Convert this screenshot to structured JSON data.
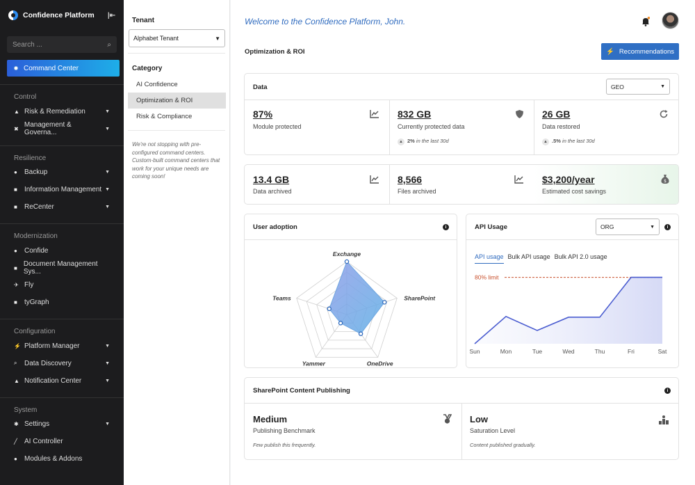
{
  "app": {
    "title": "Confidence Platform"
  },
  "search": {
    "placeholder": "Search ..."
  },
  "command_center": "Command Center",
  "sidebar": {
    "sections": [
      {
        "title": "Control",
        "items": [
          {
            "label": "Risk & Remediation",
            "icon": "warning-icon",
            "expand": true
          },
          {
            "label": "Management & Governa...",
            "icon": "tools-icon",
            "expand": true
          }
        ]
      },
      {
        "title": "Resilience",
        "items": [
          {
            "label": "Backup",
            "icon": "backup-icon",
            "expand": true
          },
          {
            "label": "Information Management",
            "icon": "info-management-icon",
            "expand": true
          },
          {
            "label": "ReCenter",
            "icon": "recenter-icon",
            "expand": true
          }
        ]
      },
      {
        "title": "Modernization",
        "items": [
          {
            "label": "Confide",
            "icon": "chat-icon",
            "expand": false
          },
          {
            "label": "Document Management Sys...",
            "icon": "document-icon",
            "expand": false
          },
          {
            "label": "Fly",
            "icon": "plane-icon",
            "expand": false
          },
          {
            "label": "tyGraph",
            "icon": "graph-icon",
            "expand": false
          }
        ]
      },
      {
        "title": "Configuration",
        "items": [
          {
            "label": "Platform Manager",
            "icon": "bolt-icon",
            "expand": true
          },
          {
            "label": "Data Discovery",
            "icon": "search-icon",
            "expand": true
          },
          {
            "label": "Notification Center",
            "icon": "bell-icon",
            "expand": true
          }
        ]
      },
      {
        "title": "System",
        "items": [
          {
            "label": "Settings",
            "icon": "gear-icon",
            "expand": true
          },
          {
            "label": "AI Controller",
            "icon": "wand-icon",
            "expand": false
          },
          {
            "label": "Modules & Addons",
            "icon": "modules-icon",
            "expand": false
          }
        ]
      }
    ]
  },
  "tenant": {
    "heading": "Tenant",
    "selected": "Alphabet Tenant"
  },
  "category": {
    "heading": "Category",
    "items": [
      "AI Confidence",
      "Optimization & ROI",
      "Risk & Compliance"
    ],
    "active": "Optimization & ROI",
    "note": "We're not stopping with pre-configured command centers. Custom-built command centers that work for your unique needs are coming soon!"
  },
  "header": {
    "welcome": "Welcome to the Confidence Platform, John.",
    "page_title": "Optimization & ROI",
    "recommendations": "Recommendations"
  },
  "data_card": {
    "title": "Data",
    "geo": "GEO",
    "metrics": [
      {
        "value": "87%",
        "label": "Module protected",
        "icon": "chart-line-icon"
      },
      {
        "value": "832 GB",
        "label": "Currently protected data",
        "trend_value": "2%",
        "trend_text": " in the last 30d",
        "icon": "shield-icon"
      },
      {
        "value": "26 GB",
        "label": "Data restored",
        "trend_value": ".5%",
        "trend_text": " in the last 30d",
        "icon": "refresh-icon"
      }
    ]
  },
  "archive_card": {
    "metrics": [
      {
        "value": "13.4 GB",
        "label": "Data archived",
        "icon": "chart-line-icon"
      },
      {
        "value": "8,566",
        "label": "Files archived",
        "icon": "chart-line-icon"
      },
      {
        "value": "$3,200/year",
        "label": "Estimated cost savings",
        "icon": "money-bag-icon"
      }
    ]
  },
  "user_adoption": {
    "title": "User adoption"
  },
  "api_usage": {
    "title": "API Usage",
    "org": "ORG",
    "tabs": [
      "API usage",
      "Bulk API usage",
      "Bulk API 2.0 usage"
    ],
    "limit_label": "80% limit"
  },
  "sharepoint": {
    "title": "SharePoint Content Publishing",
    "left": {
      "value": "Medium",
      "label": "Publishing Benchmark",
      "note": "Few publish this frequently."
    },
    "right": {
      "value": "Low",
      "label": "Saturation Level",
      "note": "Content published gradually."
    }
  },
  "chart_data": [
    {
      "type": "radar",
      "title": "User adoption",
      "axes": [
        "Exchange",
        "SharePoint",
        "OneDrive",
        "Yammer",
        "Teams"
      ],
      "values": [
        1.0,
        0.75,
        0.45,
        0.2,
        0.35
      ],
      "max": 1.0
    },
    {
      "type": "line",
      "title": "API Usage",
      "categories": [
        "Sun",
        "Mon",
        "Tue",
        "Wed",
        "Thu",
        "Fri",
        "Sat"
      ],
      "values": [
        0,
        37,
        18,
        36,
        36,
        90,
        90
      ],
      "limit": 90,
      "ylim": [
        0,
        100
      ]
    }
  ]
}
